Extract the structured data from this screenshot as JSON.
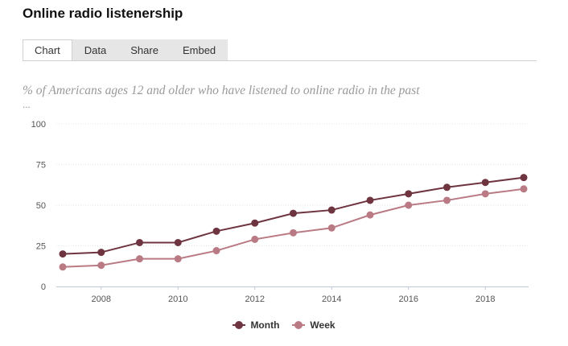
{
  "page": {
    "title": "Online radio listenership",
    "tabs": [
      {
        "label": "Chart",
        "active": true
      },
      {
        "label": "Data",
        "active": false
      },
      {
        "label": "Share",
        "active": false
      },
      {
        "label": "Embed",
        "active": false
      }
    ],
    "subtitle": "% of Americans ages 12 and older who have listened to online radio in the past",
    "subtitle_ellipsis": "..."
  },
  "chart_data": {
    "type": "line",
    "x": [
      2007,
      2008,
      2009,
      2010,
      2011,
      2012,
      2013,
      2014,
      2015,
      2016,
      2017,
      2018,
      2019
    ],
    "series": [
      {
        "name": "Month",
        "color": "#6e3440",
        "values": [
          20,
          21,
          27,
          27,
          34,
          39,
          45,
          47,
          53,
          57,
          61,
          64,
          67
        ]
      },
      {
        "name": "Week",
        "color": "#b97a84",
        "values": [
          12,
          13,
          17,
          17,
          22,
          29,
          33,
          36,
          44,
          50,
          53,
          57,
          60
        ]
      }
    ],
    "xticks": [
      "2008",
      "2010",
      "2012",
      "2014",
      "2016",
      "2018"
    ],
    "xtick_values": [
      2008,
      2010,
      2012,
      2014,
      2016,
      2018
    ],
    "yticks": [
      "0",
      "25",
      "50",
      "75",
      "100"
    ],
    "ytick_values": [
      0,
      25,
      50,
      75,
      100
    ],
    "ylim": [
      0,
      100
    ],
    "xlim": [
      2007,
      2019
    ],
    "grid": true,
    "legend_position": "bottom-center"
  }
}
